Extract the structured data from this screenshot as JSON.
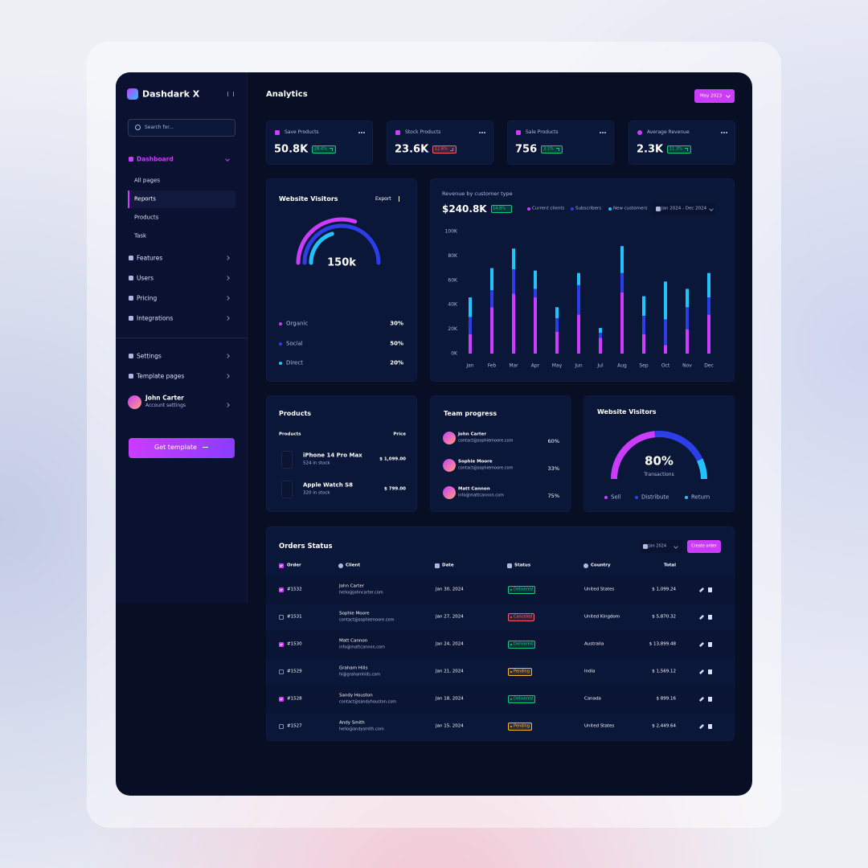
{
  "sidebar": {
    "brand": "Dashdark X",
    "search": "Search for...",
    "menu": {
      "label": "Dashboard",
      "items": [
        "All pages",
        "Reports",
        "Products",
        "Task"
      ],
      "active": 1
    },
    "nav": [
      "Features",
      "Users",
      "Pricing",
      "Integrations"
    ],
    "nav_secondary": [
      "Settings",
      "Template pages"
    ],
    "user": {
      "name": "John Carter",
      "subtitle": "Account settings"
    },
    "cta": "Get template"
  },
  "header": {
    "title": "Analytics",
    "date_button": "May 2023"
  },
  "stats": [
    {
      "label": "Save Products",
      "value": "50.8K",
      "change": "28.4%",
      "trend": "up"
    },
    {
      "label": "Stock Products",
      "value": "23.6K",
      "change": "12.6%",
      "trend": "down"
    },
    {
      "label": "Sale Products",
      "value": "756",
      "change": "3.1%",
      "trend": "up"
    },
    {
      "label": "Average Revenue",
      "value": "2.3K",
      "change": "11.3%",
      "trend": "up"
    }
  ],
  "visitors": {
    "type": "radial",
    "title": "Website Visitors",
    "action": "Export",
    "center": "150k",
    "categories": [
      "Organic",
      "Social",
      "Direct"
    ],
    "values": [
      30,
      50,
      20
    ],
    "value_labels": [
      "30%",
      "50%",
      "20%"
    ],
    "colors": [
      "#cb3cff",
      "#2c3ee8",
      "#21c3fc"
    ]
  },
  "revenue": {
    "type": "bar",
    "stacked": true,
    "subtitle": "Revenue by customer type",
    "total": "$240.8K",
    "change": "14.8%",
    "date_range": "Jan 2024 - Dec 2024",
    "categories": [
      "Jan",
      "Feb",
      "Mar",
      "Apr",
      "May",
      "Jun",
      "Jul",
      "Aug",
      "Sep",
      "Oct",
      "Nov",
      "Dec"
    ],
    "series": [
      {
        "name": "Current clients",
        "color": "#cb3cff",
        "values": [
          16000,
          38000,
          49000,
          46000,
          18000,
          32000,
          13000,
          50000,
          16000,
          7000,
          20000,
          32000
        ]
      },
      {
        "name": "Subscribers",
        "color": "#2c3ee8",
        "values": [
          14000,
          14000,
          20000,
          7000,
          11000,
          24000,
          4000,
          16000,
          15000,
          21000,
          18000,
          14000
        ]
      },
      {
        "name": "New customers",
        "color": "#21c3fc",
        "values": [
          16000,
          18000,
          17000,
          15000,
          9000,
          10000,
          4000,
          22000,
          16000,
          31000,
          15000,
          20000
        ]
      }
    ],
    "ylim": [
      0,
      100000
    ],
    "yticks": [
      {
        "value": 0,
        "label": "0K"
      },
      {
        "value": 20000,
        "label": "20K"
      },
      {
        "value": 40000,
        "label": "40K"
      },
      {
        "value": 60000,
        "label": "60K"
      },
      {
        "value": 80000,
        "label": "80K"
      },
      {
        "value": 100000,
        "label": "100K"
      }
    ],
    "grid": false
  },
  "products": {
    "title": "Products",
    "columns": [
      "Products",
      "Price"
    ],
    "rows": [
      {
        "name": "iPhone 14 Pro Max",
        "stock": "524 in stock",
        "price": "$ 1,099.00"
      },
      {
        "name": "Apple Watch S8",
        "stock": "320 in stock",
        "price": "$ 799.00"
      }
    ]
  },
  "team": {
    "title": "Team progress",
    "members": [
      {
        "name": "John Carter",
        "email": "contact@sophiemoore.com",
        "progress": "60%"
      },
      {
        "name": "Sophie Moore",
        "email": "contact@sophiemoore.com",
        "progress": "33%"
      },
      {
        "name": "Matt Cannon",
        "email": "info@mattcannon.com",
        "progress": "75%"
      }
    ]
  },
  "gauge": {
    "type": "gauge",
    "title": "Website Visitors",
    "center": "80%",
    "label": "Transactions",
    "categories": [
      "Sell",
      "Distribute",
      "Return"
    ],
    "values": [
      47,
      39,
      14
    ],
    "colors": [
      "#cb3cff",
      "#2c3ee8",
      "#21c3fc"
    ]
  },
  "orders": {
    "title": "Orders Status",
    "date_filter": "Jan 2024",
    "create": "Create order",
    "columns": [
      "Order",
      "Client",
      "Date",
      "Status",
      "Country",
      "Total"
    ],
    "rows": [
      {
        "checked": true,
        "id": "#1532",
        "client": "John Carter",
        "email": "hello@johncarter.com",
        "date": "Jan 30, 2024",
        "status": "Delivered",
        "country": "United States",
        "total": "$ 1,099.24"
      },
      {
        "checked": false,
        "id": "#1531",
        "client": "Sophie Moore",
        "email": "contact@sophiemoore.com",
        "date": "Jan 27, 2024",
        "status": "Canceled",
        "country": "United Kingdom",
        "total": "$ 5,870.32"
      },
      {
        "checked": true,
        "id": "#1530",
        "client": "Matt Cannon",
        "email": "info@mattcannon.com",
        "date": "Jan 24, 2024",
        "status": "Delivered",
        "country": "Australia",
        "total": "$ 13,899.48"
      },
      {
        "checked": false,
        "id": "#1529",
        "client": "Graham Hills",
        "email": "hi@grahamhills.com",
        "date": "Jan 21, 2024",
        "status": "Pending",
        "country": "India",
        "total": "$ 1,569.12"
      },
      {
        "checked": true,
        "id": "#1528",
        "client": "Sandy Houston",
        "email": "contact@sandyhouston.com",
        "date": "Jan 18, 2024",
        "status": "Delivered",
        "country": "Canada",
        "total": "$ 899.16"
      },
      {
        "checked": false,
        "id": "#1527",
        "client": "Andy Smith",
        "email": "hello@andysmith.com",
        "date": "Jan 15, 2024",
        "status": "Pending",
        "country": "United States",
        "total": "$ 2,449.64"
      }
    ]
  }
}
